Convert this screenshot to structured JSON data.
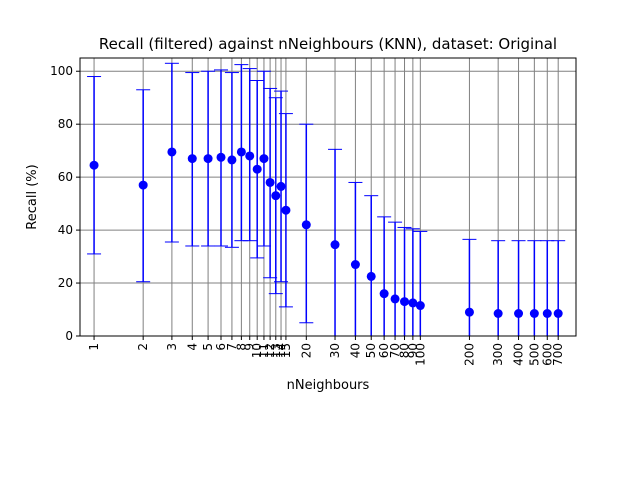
{
  "chart_data": {
    "type": "scatter",
    "title": "Recall (filtered) against nNeighbours (KNN), dataset: Original",
    "xlabel": "nNeighbours",
    "ylabel": "Recall (%)",
    "x_scale": "log",
    "ylim": [
      0,
      105
    ],
    "xlim": [
      0.82,
      900
    ],
    "grid": true,
    "marker_color": "#0000ff",
    "y_ticks": [
      "0",
      "20",
      "40",
      "60",
      "80",
      "100"
    ],
    "x_ticks": [
      {
        "x": 1,
        "label": "1"
      },
      {
        "x": 2,
        "label": "2"
      },
      {
        "x": 3,
        "label": "3"
      },
      {
        "x": 4,
        "label": "4"
      },
      {
        "x": 5,
        "label": "5"
      },
      {
        "x": 6,
        "label": "6"
      },
      {
        "x": 7,
        "label": "7"
      },
      {
        "x": 8,
        "label": "8"
      },
      {
        "x": 9,
        "label": "9"
      },
      {
        "x": 10,
        "label": "10"
      },
      {
        "x": 11,
        "label": "11"
      },
      {
        "x": 12,
        "label": "12"
      },
      {
        "x": 13,
        "label": "13"
      },
      {
        "x": 14,
        "label": "14"
      },
      {
        "x": 15,
        "label": "15"
      },
      {
        "x": 20,
        "label": "20"
      },
      {
        "x": 30,
        "label": "30"
      },
      {
        "x": 40,
        "label": "40"
      },
      {
        "x": 50,
        "label": "50"
      },
      {
        "x": 60,
        "label": "60"
      },
      {
        "x": 70,
        "label": "70"
      },
      {
        "x": 80,
        "label": "80"
      },
      {
        "x": 90,
        "label": "90"
      },
      {
        "x": 100,
        "label": "100"
      },
      {
        "x": 200,
        "label": "200"
      },
      {
        "x": 300,
        "label": "300"
      },
      {
        "x": 400,
        "label": "400"
      },
      {
        "x": 500,
        "label": "500"
      },
      {
        "x": 600,
        "label": "600"
      },
      {
        "x": 700,
        "label": "700"
      }
    ],
    "points": [
      {
        "x": 1,
        "y": 64.5,
        "low": 31,
        "high": 98
      },
      {
        "x": 2,
        "y": 57,
        "low": 20.5,
        "high": 93
      },
      {
        "x": 3,
        "y": 69.5,
        "low": 35.5,
        "high": 103
      },
      {
        "x": 4,
        "y": 67,
        "low": 34,
        "high": 99.5
      },
      {
        "x": 5,
        "y": 67,
        "low": 34,
        "high": 100
      },
      {
        "x": 6,
        "y": 67.5,
        "low": 34,
        "high": 100.5
      },
      {
        "x": 7,
        "y": 66.5,
        "low": 33.5,
        "high": 99.5
      },
      {
        "x": 8,
        "y": 69.5,
        "low": 36,
        "high": 102.5
      },
      {
        "x": 9,
        "y": 68,
        "low": 36,
        "high": 101
      },
      {
        "x": 10,
        "y": 63,
        "low": 29.5,
        "high": 96.5
      },
      {
        "x": 11,
        "y": 67,
        "low": 34,
        "high": 100
      },
      {
        "x": 12,
        "y": 58,
        "low": 22,
        "high": 93.5
      },
      {
        "x": 13,
        "y": 53,
        "low": 16,
        "high": 90
      },
      {
        "x": 14,
        "y": 56.5,
        "low": 20.5,
        "high": 92.5
      },
      {
        "x": 15,
        "y": 47.5,
        "low": 11,
        "high": 84
      },
      {
        "x": 20,
        "y": 42,
        "low": 5,
        "high": 80
      },
      {
        "x": 30,
        "y": 34.5,
        "low": 0,
        "high": 70.5
      },
      {
        "x": 40,
        "y": 27,
        "low": 0,
        "high": 58
      },
      {
        "x": 50,
        "y": 22.5,
        "low": 0,
        "high": 53
      },
      {
        "x": 60,
        "y": 16,
        "low": 0,
        "high": 45
      },
      {
        "x": 70,
        "y": 14,
        "low": 0,
        "high": 43
      },
      {
        "x": 80,
        "y": 13,
        "low": 0,
        "high": 41
      },
      {
        "x": 90,
        "y": 12.5,
        "low": 0,
        "high": 40.5
      },
      {
        "x": 100,
        "y": 11.5,
        "low": 0,
        "high": 39.5
      },
      {
        "x": 200,
        "y": 9,
        "low": 0,
        "high": 36.5
      },
      {
        "x": 300,
        "y": 8.5,
        "low": 0,
        "high": 36
      },
      {
        "x": 400,
        "y": 8.5,
        "low": 0,
        "high": 36
      },
      {
        "x": 500,
        "y": 8.5,
        "low": 0,
        "high": 36
      },
      {
        "x": 600,
        "y": 8.5,
        "low": 0,
        "high": 36
      },
      {
        "x": 700,
        "y": 8.5,
        "low": 0,
        "high": 36
      }
    ]
  }
}
